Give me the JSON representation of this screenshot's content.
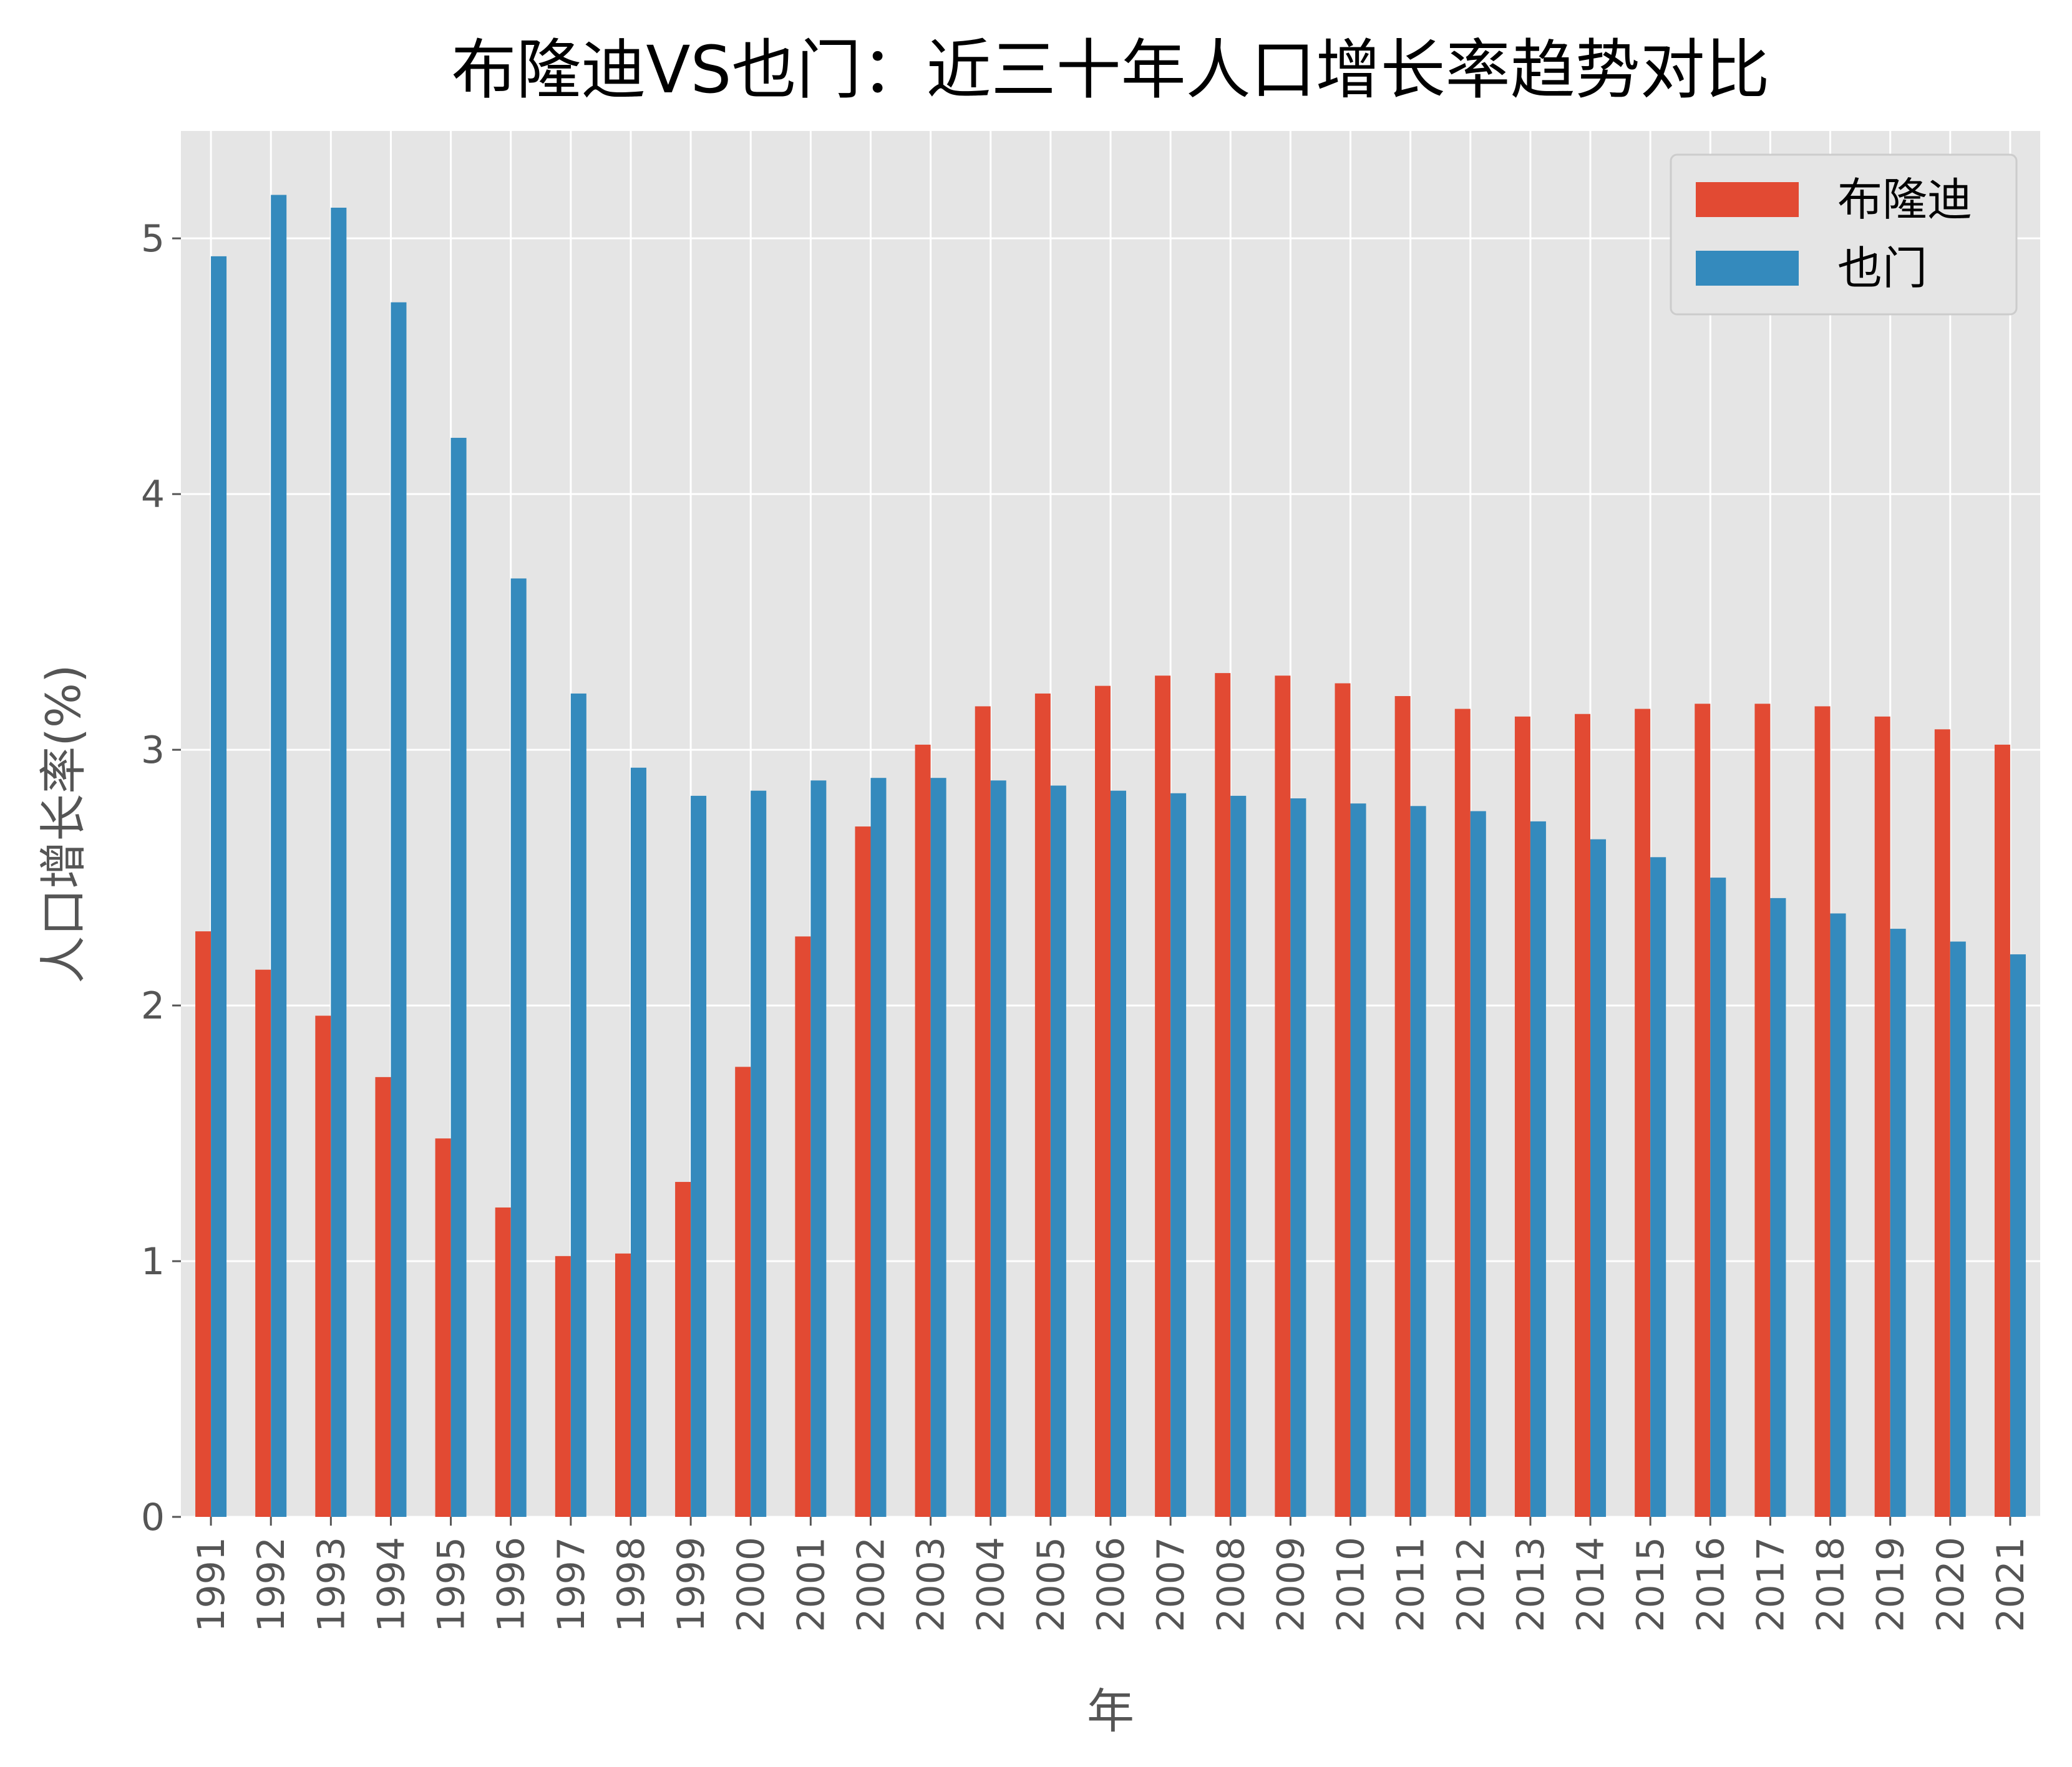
{
  "chart_data": {
    "type": "bar",
    "title": "布隆迪VS也门：近三十年人口增长率趋势对比",
    "xlabel": "年",
    "ylabel": "人口增长率(%)",
    "categories": [
      "1991",
      "1992",
      "1993",
      "1994",
      "1995",
      "1996",
      "1997",
      "1998",
      "1999",
      "2000",
      "2001",
      "2002",
      "2003",
      "2004",
      "2005",
      "2006",
      "2007",
      "2008",
      "2009",
      "2010",
      "2011",
      "2012",
      "2013",
      "2014",
      "2015",
      "2016",
      "2017",
      "2018",
      "2019",
      "2020",
      "2021"
    ],
    "ylim": [
      0,
      5.42
    ],
    "yticks": [
      "0",
      "1",
      "2",
      "3",
      "4",
      "5"
    ],
    "grid": true,
    "legend_position": "top-right",
    "series": [
      {
        "name": "布隆迪",
        "color": "#E24A33",
        "values": [
          2.29,
          2.14,
          1.96,
          1.72,
          1.48,
          1.21,
          1.02,
          1.03,
          1.31,
          1.76,
          2.27,
          2.7,
          3.02,
          3.17,
          3.22,
          3.25,
          3.29,
          3.3,
          3.29,
          3.26,
          3.21,
          3.16,
          3.13,
          3.14,
          3.16,
          3.18,
          3.18,
          3.17,
          3.13,
          3.08,
          3.02
        ]
      },
      {
        "name": "也门",
        "color": "#348ABD",
        "values": [
          4.93,
          5.17,
          5.12,
          4.75,
          4.22,
          3.67,
          3.22,
          2.93,
          2.82,
          2.84,
          2.88,
          2.89,
          2.89,
          2.88,
          2.86,
          2.84,
          2.83,
          2.82,
          2.81,
          2.79,
          2.78,
          2.76,
          2.72,
          2.65,
          2.58,
          2.5,
          2.42,
          2.36,
          2.3,
          2.25,
          2.2
        ]
      }
    ]
  }
}
